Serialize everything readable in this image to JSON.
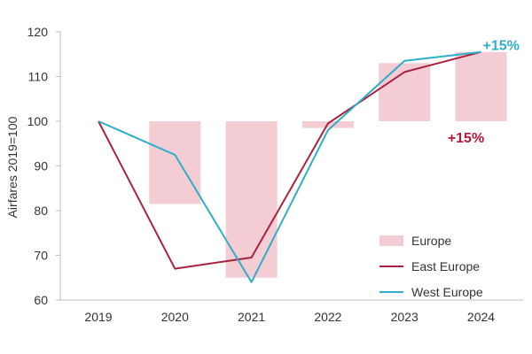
{
  "chart_data": {
    "type": "bar",
    "categories": [
      "2019",
      "2020",
      "2021",
      "2022",
      "2023",
      "2024"
    ],
    "ylabel": "Airfares 2019=100",
    "ylim": [
      60,
      120
    ],
    "yticks": [
      "60",
      "70",
      "80",
      "90",
      "100",
      "110",
      "120"
    ],
    "baseline": 100,
    "grid": false,
    "legend_position": "bottom-right",
    "bars": {
      "name": "Europe",
      "color": "#f4ccd4",
      "values": [
        100,
        81.5,
        65,
        98.5,
        113,
        115.5
      ]
    },
    "series": [
      {
        "name": "East Europe",
        "type": "line",
        "color": "#a8233f",
        "values": [
          100,
          67,
          69.5,
          99.5,
          111,
          115.5
        ]
      },
      {
        "name": "West Europe",
        "type": "line",
        "color": "#2eaec8",
        "values": [
          100,
          92.5,
          64,
          98,
          113.5,
          115.5
        ]
      }
    ],
    "annotations": [
      {
        "text": "+15%",
        "color": "#2eaec8",
        "category": "2024",
        "position": "right-of-end"
      },
      {
        "text": "+15%",
        "color": "#b3193a",
        "category": "2024",
        "position": "below-bar"
      }
    ]
  }
}
